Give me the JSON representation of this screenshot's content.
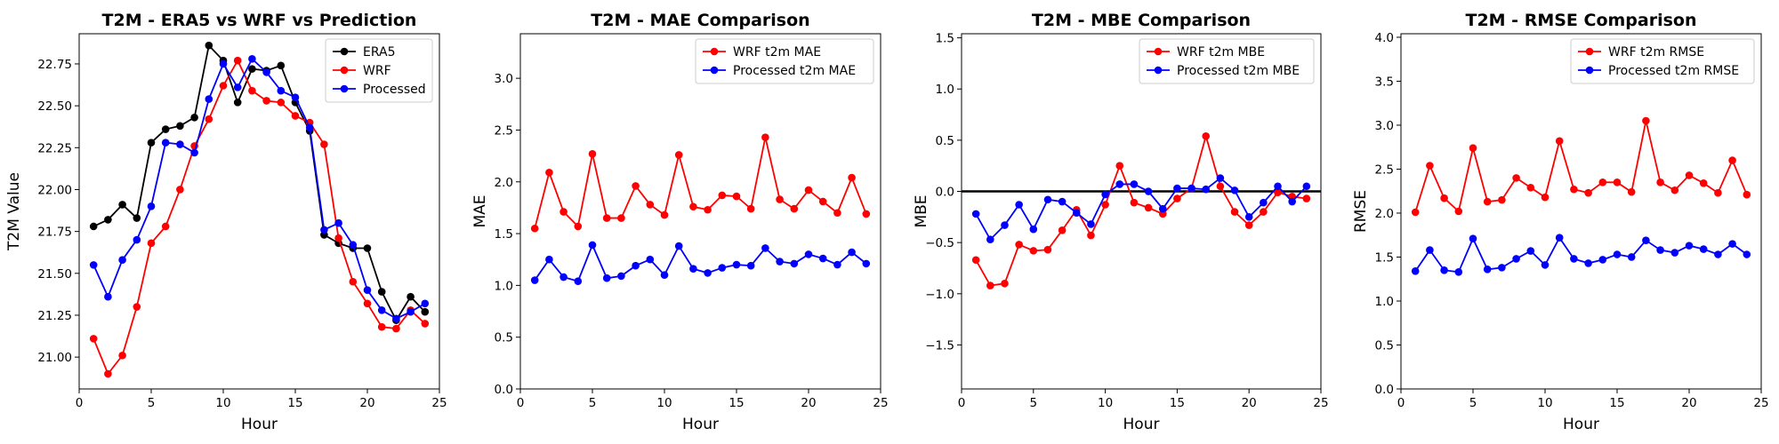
{
  "chart_data": [
    {
      "type": "line",
      "title": "T2M - ERA5 vs WRF vs Prediction",
      "xlabel": "Hour",
      "ylabel": "T2M Value",
      "xlim": [
        0,
        25
      ],
      "ylim": [
        20.81,
        22.93
      ],
      "xticks": [
        0,
        5,
        10,
        15,
        20,
        25
      ],
      "yticks": [
        21.0,
        21.25,
        21.5,
        21.75,
        22.0,
        22.25,
        22.5,
        22.75
      ],
      "ytick_decimals": 2,
      "legend_position": "top-right",
      "x": [
        1,
        2,
        3,
        4,
        5,
        6,
        7,
        8,
        9,
        10,
        11,
        12,
        13,
        14,
        15,
        16,
        17,
        18,
        19,
        20,
        21,
        22,
        23,
        24
      ],
      "series": [
        {
          "name": "ERA5",
          "color": "#000000",
          "values": [
            21.78,
            21.82,
            21.91,
            21.83,
            22.28,
            22.36,
            22.38,
            22.43,
            22.86,
            22.77,
            22.52,
            22.72,
            22.71,
            22.74,
            22.52,
            22.35,
            21.73,
            21.68,
            21.65,
            21.65,
            21.39,
            21.22,
            21.36,
            21.27
          ]
        },
        {
          "name": "WRF",
          "color": "#ff0000",
          "values": [
            21.11,
            20.9,
            21.01,
            21.3,
            21.68,
            21.78,
            22.0,
            22.26,
            22.42,
            22.62,
            22.77,
            22.59,
            22.53,
            22.52,
            22.44,
            22.4,
            22.27,
            21.71,
            21.45,
            21.32,
            21.18,
            21.17,
            21.28,
            21.2
          ]
        },
        {
          "name": "Processed",
          "color": "#0000ff",
          "values": [
            21.55,
            21.36,
            21.58,
            21.7,
            21.9,
            22.28,
            22.27,
            22.22,
            22.54,
            22.75,
            22.61,
            22.78,
            22.7,
            22.59,
            22.55,
            22.37,
            21.76,
            21.8,
            21.67,
            21.4,
            21.28,
            21.23,
            21.27,
            21.32
          ]
        }
      ]
    },
    {
      "type": "line",
      "title": "T2M - MAE Comparison",
      "xlabel": "Hour",
      "ylabel": "MAE",
      "xlim": [
        0,
        25
      ],
      "ylim": [
        0,
        3.43
      ],
      "xticks": [
        0,
        5,
        10,
        15,
        20,
        25
      ],
      "yticks": [
        0.0,
        0.5,
        1.0,
        1.5,
        2.0,
        2.5,
        3.0
      ],
      "ytick_decimals": 1,
      "legend_position": "top-right",
      "x": [
        1,
        2,
        3,
        4,
        5,
        6,
        7,
        8,
        9,
        10,
        11,
        12,
        13,
        14,
        15,
        16,
        17,
        18,
        19,
        20,
        21,
        22,
        23,
        24
      ],
      "series": [
        {
          "name": "WRF t2m MAE",
          "color": "#ff0000",
          "values": [
            1.55,
            2.09,
            1.71,
            1.57,
            2.27,
            1.65,
            1.65,
            1.96,
            1.78,
            1.68,
            2.26,
            1.76,
            1.73,
            1.87,
            1.86,
            1.74,
            2.43,
            1.83,
            1.74,
            1.92,
            1.81,
            1.7,
            2.04,
            1.69
          ]
        },
        {
          "name": "Processed t2m MAE",
          "color": "#0000ff",
          "values": [
            1.05,
            1.25,
            1.08,
            1.04,
            1.39,
            1.07,
            1.09,
            1.19,
            1.25,
            1.1,
            1.38,
            1.16,
            1.12,
            1.17,
            1.2,
            1.19,
            1.36,
            1.23,
            1.21,
            1.3,
            1.26,
            1.2,
            1.32,
            1.21
          ]
        }
      ]
    },
    {
      "type": "line",
      "title": "T2M - MBE Comparison",
      "xlabel": "Hour",
      "ylabel": "MBE",
      "xlim": [
        0,
        25
      ],
      "ylim": [
        -1.93,
        1.54
      ],
      "xticks": [
        0,
        5,
        10,
        15,
        20,
        25
      ],
      "yticks": [
        -1.5,
        -1.0,
        -0.5,
        0.0,
        0.5,
        1.0,
        1.5
      ],
      "ytick_decimals": 1,
      "zero_line": true,
      "legend_position": "top-right",
      "x": [
        1,
        2,
        3,
        4,
        5,
        6,
        7,
        8,
        9,
        10,
        11,
        12,
        13,
        14,
        15,
        16,
        17,
        18,
        19,
        20,
        21,
        22,
        23,
        24
      ],
      "series": [
        {
          "name": "WRF t2m MBE",
          "color": "#ff0000",
          "values": [
            -0.67,
            -0.92,
            -0.9,
            -0.52,
            -0.58,
            -0.57,
            -0.38,
            -0.18,
            -0.43,
            -0.13,
            0.25,
            -0.11,
            -0.16,
            -0.22,
            -0.07,
            0.03,
            0.54,
            0.05,
            -0.2,
            -0.33,
            -0.2,
            -0.01,
            -0.05,
            -0.07
          ]
        },
        {
          "name": "Processed t2m MBE",
          "color": "#0000ff",
          "values": [
            -0.22,
            -0.47,
            -0.33,
            -0.13,
            -0.37,
            -0.08,
            -0.1,
            -0.21,
            -0.32,
            -0.03,
            0.07,
            0.07,
            0.0,
            -0.17,
            0.03,
            0.03,
            0.02,
            0.13,
            0.01,
            -0.25,
            -0.11,
            0.05,
            -0.1,
            0.05
          ]
        }
      ]
    },
    {
      "type": "line",
      "title": "T2M - RMSE Comparison",
      "xlabel": "Hour",
      "ylabel": "RMSE",
      "xlim": [
        0,
        25
      ],
      "ylim": [
        0,
        4.04
      ],
      "xticks": [
        0,
        5,
        10,
        15,
        20,
        25
      ],
      "yticks": [
        0.0,
        0.5,
        1.0,
        1.5,
        2.0,
        2.5,
        3.0,
        3.5,
        4.0
      ],
      "ytick_decimals": 1,
      "legend_position": "top-right",
      "x": [
        1,
        2,
        3,
        4,
        5,
        6,
        7,
        8,
        9,
        10,
        11,
        12,
        13,
        14,
        15,
        16,
        17,
        18,
        19,
        20,
        21,
        22,
        23,
        24
      ],
      "series": [
        {
          "name": "WRF t2m RMSE",
          "color": "#ff0000",
          "values": [
            2.01,
            2.54,
            2.17,
            2.02,
            2.74,
            2.13,
            2.15,
            2.4,
            2.29,
            2.18,
            2.82,
            2.27,
            2.23,
            2.35,
            2.35,
            2.24,
            3.05,
            2.35,
            2.26,
            2.43,
            2.34,
            2.23,
            2.6,
            2.21
          ]
        },
        {
          "name": "Processed t2m RMSE",
          "color": "#0000ff",
          "values": [
            1.34,
            1.58,
            1.35,
            1.33,
            1.71,
            1.36,
            1.38,
            1.48,
            1.57,
            1.41,
            1.72,
            1.48,
            1.43,
            1.47,
            1.53,
            1.5,
            1.69,
            1.58,
            1.55,
            1.63,
            1.59,
            1.53,
            1.65,
            1.53
          ]
        }
      ]
    }
  ]
}
